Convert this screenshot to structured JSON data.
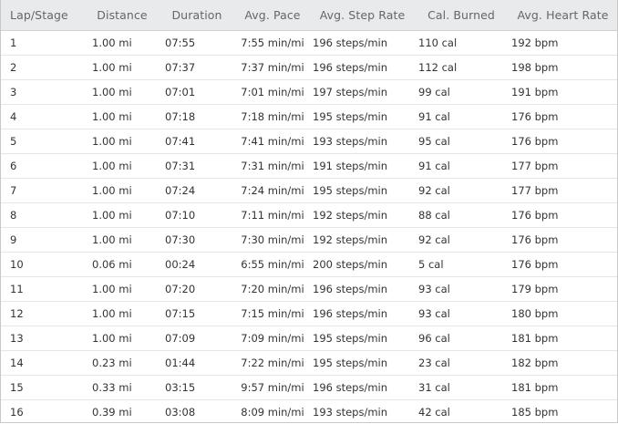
{
  "table": {
    "columns": [
      "Lap/Stage",
      "Distance",
      "Duration",
      "Avg. Pace",
      "Avg. Step Rate",
      "Cal. Burned",
      "Avg. Heart Rate"
    ],
    "rows": [
      [
        "1",
        "1.00 mi",
        "07:55",
        "7:55 min/mi",
        "196 steps/min",
        "110 cal",
        "192 bpm"
      ],
      [
        "2",
        "1.00 mi",
        "07:37",
        "7:37 min/mi",
        "196 steps/min",
        "112 cal",
        "198 bpm"
      ],
      [
        "3",
        "1.00 mi",
        "07:01",
        "7:01 min/mi",
        "197 steps/min",
        "99 cal",
        "191 bpm"
      ],
      [
        "4",
        "1.00 mi",
        "07:18",
        "7:18 min/mi",
        "195 steps/min",
        "91 cal",
        "176 bpm"
      ],
      [
        "5",
        "1.00 mi",
        "07:41",
        "7:41 min/mi",
        "193 steps/min",
        "95 cal",
        "176 bpm"
      ],
      [
        "6",
        "1.00 mi",
        "07:31",
        "7:31 min/mi",
        "191 steps/min",
        "91 cal",
        "177 bpm"
      ],
      [
        "7",
        "1.00 mi",
        "07:24",
        "7:24 min/mi",
        "195 steps/min",
        "92 cal",
        "177 bpm"
      ],
      [
        "8",
        "1.00 mi",
        "07:10",
        "7:11 min/mi",
        "192 steps/min",
        "88 cal",
        "176 bpm"
      ],
      [
        "9",
        "1.00 mi",
        "07:30",
        "7:30 min/mi",
        "192 steps/min",
        "92 cal",
        "176 bpm"
      ],
      [
        "10",
        "0.06 mi",
        "00:24",
        "6:55 min/mi",
        "200 steps/min",
        "5 cal",
        "176 bpm"
      ],
      [
        "11",
        "1.00 mi",
        "07:20",
        "7:20 min/mi",
        "196 steps/min",
        "93 cal",
        "179 bpm"
      ],
      [
        "12",
        "1.00 mi",
        "07:15",
        "7:15 min/mi",
        "196 steps/min",
        "93 cal",
        "180 bpm"
      ],
      [
        "13",
        "1.00 mi",
        "07:09",
        "7:09 min/mi",
        "195 steps/min",
        "96 cal",
        "181 bpm"
      ],
      [
        "14",
        "0.23 mi",
        "01:44",
        "7:22 min/mi",
        "195 steps/min",
        "23 cal",
        "182 bpm"
      ],
      [
        "15",
        "0.33 mi",
        "03:15",
        "9:57 min/mi",
        "196 steps/min",
        "31 cal",
        "181 bpm"
      ],
      [
        "16",
        "0.39 mi",
        "03:08",
        "8:09 min/mi",
        "193 steps/min",
        "42 cal",
        "185 bpm"
      ]
    ]
  }
}
